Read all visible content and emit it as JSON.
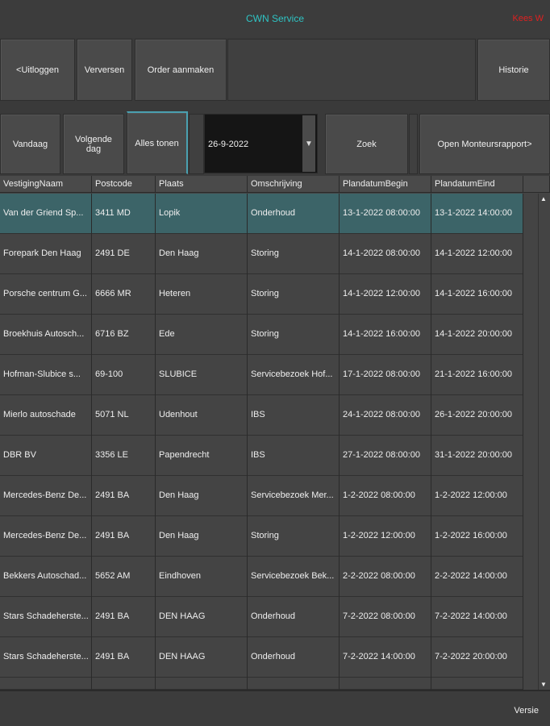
{
  "header": {
    "title": "CWN Service",
    "user": "Kees W"
  },
  "toolbar": {
    "logout": "<Uitloggen",
    "refresh": "Verversen",
    "create_order": "Order aanmaken",
    "history": "Historie"
  },
  "filters": {
    "today": "Vandaag",
    "next_day": "Volgende dag",
    "show_all": "Alles tonen",
    "date": "26-9-2022",
    "search": "Zoek",
    "open_report": "Open Monteursrapport>"
  },
  "table": {
    "columns": [
      "VestigingNaam",
      "Postcode",
      "Plaats",
      "Omschrijving",
      "PlandatumBegin",
      "PlandatumEind"
    ],
    "rows": [
      [
        "Van der Griend Sp...",
        "3411 MD",
        "Lopik",
        "Onderhoud",
        "13-1-2022 08:00:00",
        "13-1-2022 14:00:00"
      ],
      [
        "Forepark Den Haag",
        "2491 DE",
        "Den Haag",
        "Storing",
        "14-1-2022 08:00:00",
        "14-1-2022 12:00:00"
      ],
      [
        "Porsche centrum G...",
        "6666 MR",
        "Heteren",
        "Storing",
        "14-1-2022 12:00:00",
        "14-1-2022 16:00:00"
      ],
      [
        "Broekhuis Autosch...",
        "6716 BZ",
        "Ede",
        "Storing",
        "14-1-2022 16:00:00",
        "14-1-2022 20:00:00"
      ],
      [
        "Hofman-Slubice s...",
        "69-100",
        "SLUBICE",
        "Servicebezoek Hof...",
        "17-1-2022 08:00:00",
        "21-1-2022 16:00:00"
      ],
      [
        "Mierlo autoschade",
        "5071 NL",
        "Udenhout",
        "IBS",
        "24-1-2022 08:00:00",
        "26-1-2022 20:00:00"
      ],
      [
        "DBR BV",
        "3356 LE",
        "Papendrecht",
        "IBS",
        "27-1-2022 08:00:00",
        "31-1-2022 20:00:00"
      ],
      [
        "Mercedes-Benz De...",
        "2491 BA",
        "Den Haag",
        "Servicebezoek Mer...",
        "1-2-2022 08:00:00",
        "1-2-2022 12:00:00"
      ],
      [
        "Mercedes-Benz De...",
        "2491 BA",
        "Den Haag",
        "Storing",
        "1-2-2022 12:00:00",
        "1-2-2022 16:00:00"
      ],
      [
        "Bekkers Autoschad...",
        "5652 AM",
        "Eindhoven",
        "Servicebezoek Bek...",
        "2-2-2022 08:00:00",
        "2-2-2022 14:00:00"
      ],
      [
        "Stars Schadeherste...",
        "2491 BA",
        "DEN HAAG",
        "Onderhoud",
        "7-2-2022 08:00:00",
        "7-2-2022 14:00:00"
      ],
      [
        "Stars Schadeherste...",
        "2491 BA",
        "DEN HAAG",
        "Onderhoud",
        "7-2-2022 14:00:00",
        "7-2-2022 20:00:00"
      ]
    ],
    "selected_row": 0
  },
  "footer": {
    "version": "Versie"
  },
  "colors": {
    "accent": "#2ec4c4",
    "user": "#e02020",
    "selected": "#3c6468"
  }
}
